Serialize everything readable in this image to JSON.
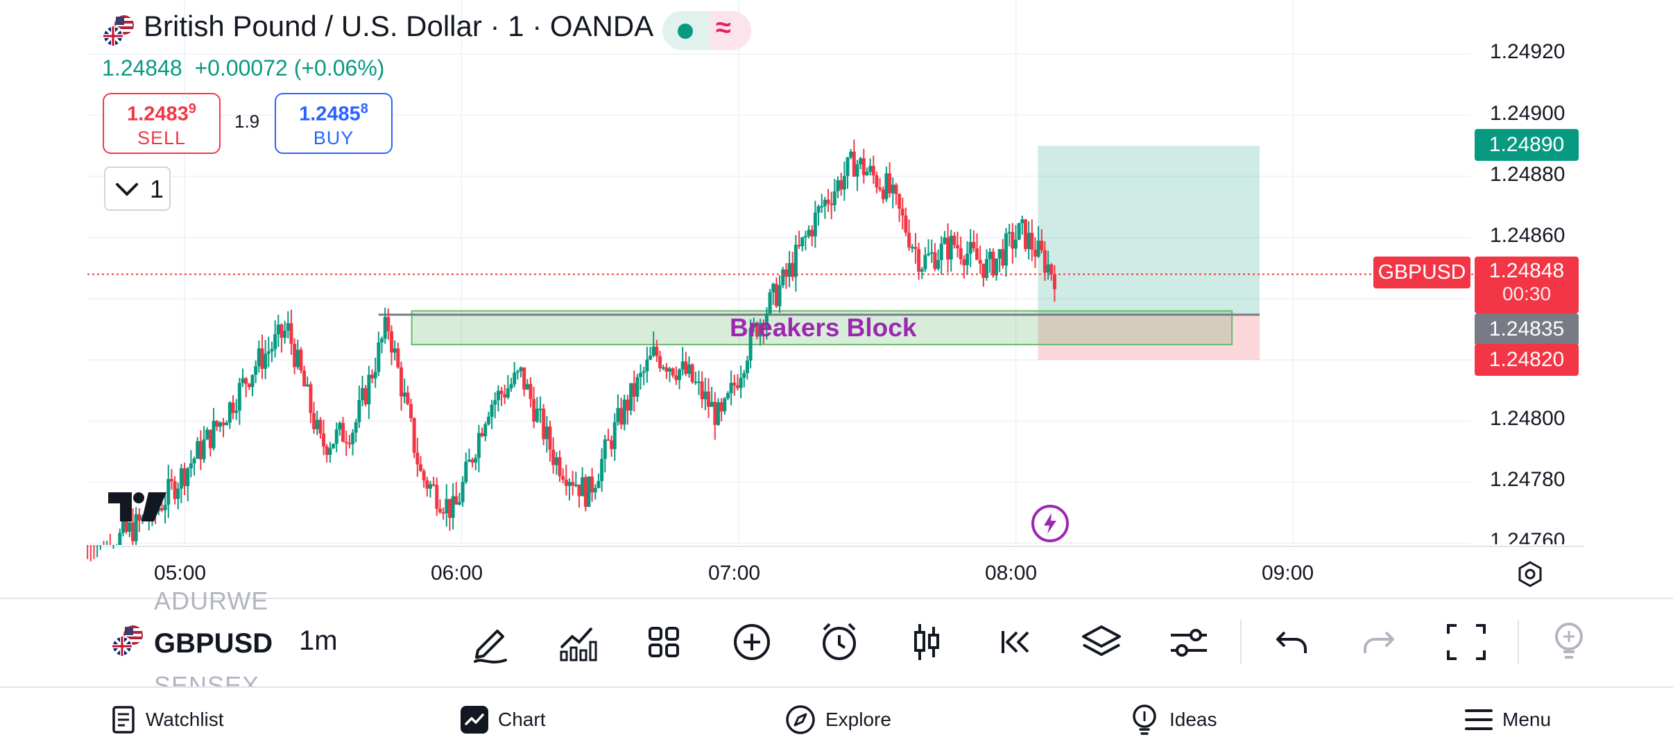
{
  "header": {
    "title": "British Pound / U.S. Dollar · 1 · OANDA",
    "last_price": "1.24848",
    "change": "+0.00072 (+0.06%)",
    "status_icon": "market-open-dot",
    "status_icon_2": "wave-icon"
  },
  "trade": {
    "sell_price_main": "1.2483",
    "sell_price_sup": "9",
    "sell_label": "SELL",
    "spread": "1.9",
    "buy_price_main": "1.2485",
    "buy_price_sup": "8",
    "buy_label": "BUY"
  },
  "interval_selector": {
    "value": "1"
  },
  "price_axis": {
    "ticks": [
      "1.24920",
      "1.24900",
      "1.24880",
      "1.24860",
      "1.24800",
      "1.24780",
      "1.24760"
    ]
  },
  "time_axis": {
    "ticks": [
      "05:00",
      "06:00",
      "07:00",
      "08:00",
      "09:00"
    ]
  },
  "tags": {
    "take_profit": "1.24890",
    "symbol": "GBPUSD",
    "current_price": "1.24848",
    "countdown": "00:30",
    "entry": "1.24835",
    "stop_loss": "1.24820"
  },
  "annotation": {
    "zone_label": "Breakers Block"
  },
  "bottom_toolbar": {
    "ghost_above": "ADURWE",
    "symbol": "GBPUSD",
    "ghost_below": "SENSEX",
    "timeframe": "1m",
    "tools": [
      "pencil-icon",
      "indicators-icon",
      "templates-icon",
      "add-icon",
      "alert-icon",
      "bar-style-icon",
      "replay-icon",
      "layers-icon",
      "settings-icon",
      "undo-icon",
      "redo-icon",
      "fullscreen-icon",
      "ideas-icon"
    ]
  },
  "nav": {
    "watchlist": "Watchlist",
    "chart": "Chart",
    "explore": "Explore",
    "ideas": "Ideas",
    "menu": "Menu"
  },
  "colors": {
    "up": "#089981",
    "down": "#f23645",
    "accent": "#2962ff",
    "zone": "#9c27b0"
  },
  "chart_data": {
    "type": "candlestick",
    "symbol": "GBPUSD",
    "x": [
      "05:00",
      "06:00",
      "07:00",
      "08:00",
      "09:00"
    ],
    "ylim": [
      1.2476,
      1.2492
    ],
    "current_price": 1.24848,
    "zone": {
      "label": "Breakers Block",
      "from_price": 1.24825,
      "to_price": 1.24836
    },
    "position": {
      "entry": 1.24835,
      "take_profit": 1.2489,
      "stop_loss": 1.2482
    },
    "path_samples": [
      1.24752,
      1.24762,
      1.2477,
      1.24785,
      1.248,
      1.24818,
      1.2483,
      1.24792,
      1.24798,
      1.24832,
      1.24782,
      1.2477,
      1.24805,
      1.24815,
      1.24788,
      1.24776,
      1.24802,
      1.24822,
      1.24815,
      1.248,
      1.2483,
      1.24848,
      1.2487,
      1.24885,
      1.24876,
      1.24852,
      1.24858,
      1.2485,
      1.24862,
      1.24848
    ]
  }
}
